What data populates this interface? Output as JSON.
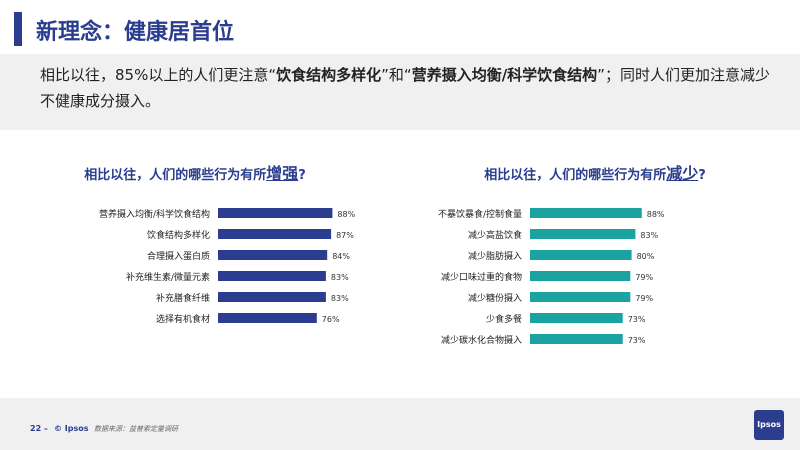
{
  "title": "新理念：健康居首位",
  "intro": {
    "part1": "相比以往，85%以上的人们更注意“",
    "bold1": "饮食结构多样化",
    "part2": "”和“",
    "bold2": "营养摄入均衡/科学饮食结构",
    "part3": "”；同时人们更加注意减少不健康成分摄入。"
  },
  "colors": {
    "brand": "#2a3d8f",
    "increase_bar": "#2a3d8f",
    "decrease_bar": "#1aa3a0"
  },
  "footer": {
    "page": "22 –",
    "copyright": "© Ipsos",
    "source": "数据来源：益普索定量调研",
    "logo": "Ipsos"
  },
  "chart_data": [
    {
      "type": "bar",
      "orientation": "horizontal",
      "title_prefix": "相比以往，人们的哪些行为有所",
      "title_highlight": "增强",
      "title_suffix": "?",
      "categories": [
        "营养摄入均衡/科学饮食结构",
        "饮食结构多样化",
        "合理摄入蛋白质",
        "补充维生素/微量元素",
        "补充膳食纤维",
        "选择有机食材"
      ],
      "values": [
        88,
        87,
        84,
        83,
        83,
        76
      ],
      "value_suffix": "%",
      "xlim": [
        0,
        100
      ]
    },
    {
      "type": "bar",
      "orientation": "horizontal",
      "title_prefix": "相比以往，人们的哪些行为有所",
      "title_highlight": "减少",
      "title_suffix": "?",
      "categories": [
        "不暴饮暴食/控制食量",
        "减少高盐饮食",
        "减少脂肪摄入",
        "减少口味过重的食物",
        "减少糖份摄入",
        "少食多餐",
        "减少碳水化合物摄入"
      ],
      "values": [
        88,
        83,
        80,
        79,
        79,
        73,
        73
      ],
      "value_suffix": "%",
      "xlim": [
        0,
        100
      ]
    }
  ]
}
